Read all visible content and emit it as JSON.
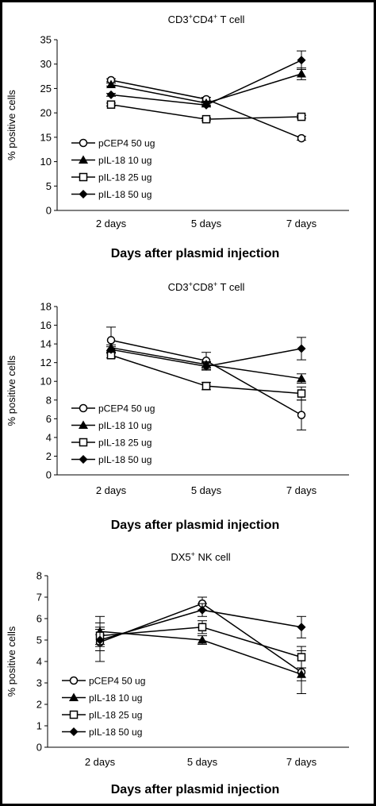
{
  "chart_data": [
    {
      "type": "line",
      "title": "CD3+CD4+ T cell",
      "title_parts": {
        "a": "CD3",
        "sup1": "+",
        "b": "CD4",
        "sup2": "+",
        "c": " T cell"
      },
      "xlabel": "Days after plasmid injection",
      "ylabel": "% positive cells",
      "categories": [
        "2 days",
        "5 days",
        "7 days"
      ],
      "ylim": [
        0,
        35
      ],
      "yticks": [
        0,
        5,
        10,
        15,
        20,
        25,
        30,
        35
      ],
      "grid": false,
      "legend_position": "bottom-left",
      "series": [
        {
          "name": "pCEP4 50 ug",
          "marker": "open-circle",
          "values": [
            26.7,
            22.8,
            14.8
          ],
          "errors": [
            0.3,
            0.4,
            0.4
          ]
        },
        {
          "name": "pIL-18 10 ug",
          "marker": "filled-triangle",
          "values": [
            25.8,
            22.0,
            28.0
          ],
          "errors": [
            0.3,
            0.4,
            1.2
          ]
        },
        {
          "name": "pIL-18 25 ug",
          "marker": "open-square",
          "values": [
            21.7,
            18.7,
            19.2
          ],
          "errors": [
            0.3,
            0.3,
            0.3
          ]
        },
        {
          "name": "pIL-18 50 ug",
          "marker": "filled-diamond",
          "values": [
            23.7,
            21.6,
            30.8
          ],
          "errors": [
            0.3,
            0.4,
            1.9
          ]
        }
      ]
    },
    {
      "type": "line",
      "title": "CD3+CD8+ T cell",
      "title_parts": {
        "a": "CD3",
        "sup1": "+",
        "b": "CD8",
        "sup2": "+",
        "c": " T cell"
      },
      "xlabel": "Days after plasmid injection",
      "ylabel": "% positive cells",
      "categories": [
        "2 days",
        "5 days",
        "7 days"
      ],
      "ylim": [
        0,
        18
      ],
      "yticks": [
        0,
        2,
        4,
        6,
        8,
        10,
        12,
        14,
        16,
        18
      ],
      "grid": false,
      "legend_position": "bottom-left",
      "series": [
        {
          "name": "pCEP4 50 ug",
          "marker": "open-circle",
          "values": [
            14.4,
            12.2,
            6.4
          ],
          "errors": [
            1.4,
            0.9,
            1.6
          ]
        },
        {
          "name": "pIL-18 10 ug",
          "marker": "filled-triangle",
          "values": [
            13.6,
            11.8,
            10.3
          ],
          "errors": [
            0.3,
            0.3,
            0.5
          ]
        },
        {
          "name": "pIL-18 25 ug",
          "marker": "open-square",
          "values": [
            12.8,
            9.5,
            8.7
          ],
          "errors": [
            0.3,
            0.4,
            0.7
          ]
        },
        {
          "name": "pIL-18 50 ug",
          "marker": "filled-diamond",
          "values": [
            13.4,
            11.6,
            13.5
          ],
          "errors": [
            0.3,
            0.4,
            1.2
          ]
        }
      ]
    },
    {
      "type": "line",
      "title": "DX5+ NK cell",
      "title_parts": {
        "a": "DX5",
        "sup1": "+",
        "b": "",
        "sup2": "",
        "c": " NK cell"
      },
      "xlabel": "Days after plasmid injection",
      "ylabel": "% positive cells",
      "categories": [
        "2 days",
        "5 days",
        "7 days"
      ],
      "ylim": [
        0,
        8
      ],
      "yticks": [
        0,
        1,
        2,
        3,
        4,
        5,
        6,
        7,
        8
      ],
      "grid": false,
      "legend_position": "bottom-left",
      "series": [
        {
          "name": "pCEP4 50 ug",
          "marker": "open-circle",
          "values": [
            4.9,
            6.7,
            3.5
          ],
          "errors": [
            0.9,
            0.3,
            1.0
          ]
        },
        {
          "name": "pIL-18 10 ug",
          "marker": "filled-triangle",
          "values": [
            5.4,
            5.0,
            3.4
          ],
          "errors": [
            0.7,
            0.2,
            0.3
          ]
        },
        {
          "name": "pIL-18 25 ug",
          "marker": "open-square",
          "values": [
            5.2,
            5.6,
            4.2
          ],
          "errors": [
            0.4,
            0.3,
            0.5
          ]
        },
        {
          "name": "pIL-18 50 ug",
          "marker": "filled-diamond",
          "values": [
            5.0,
            6.4,
            5.6
          ],
          "errors": [
            0.5,
            0.3,
            0.5
          ]
        }
      ]
    }
  ]
}
